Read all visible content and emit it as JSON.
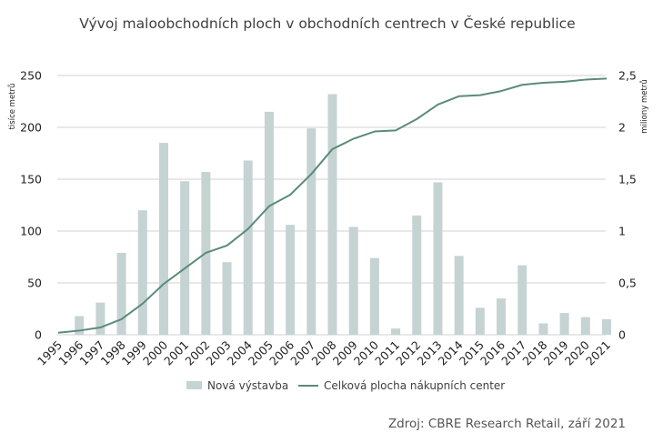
{
  "chart_data": {
    "type": "bar",
    "title": "Vývoj maloobchodních ploch v obchodních centrech v České republice",
    "categories": [
      "1995",
      "1996",
      "1997",
      "1998",
      "1999",
      "2000",
      "2001",
      "2002",
      "2003",
      "2004",
      "2005",
      "2006",
      "2007",
      "2008",
      "2009",
      "2010",
      "2011",
      "2012",
      "2013",
      "2014",
      "2015",
      "2016",
      "2017",
      "2018",
      "2019",
      "2020",
      "2021"
    ],
    "series": [
      {
        "name": "Nová výstavba",
        "kind": "bar",
        "axis": "left",
        "color": "#c5d3d3",
        "values": [
          0,
          18,
          31,
          79,
          120,
          185,
          148,
          157,
          70,
          168,
          215,
          106,
          199,
          232,
          104,
          74,
          6,
          115,
          147,
          76,
          26,
          35,
          67,
          11,
          21,
          17,
          15
        ]
      },
      {
        "name": "Celková plocha nákupních center",
        "kind": "line",
        "axis": "right",
        "color": "#5b8b7a",
        "values": [
          0.02,
          0.04,
          0.07,
          0.15,
          0.3,
          0.49,
          0.64,
          0.79,
          0.86,
          1.02,
          1.24,
          1.35,
          1.55,
          1.79,
          1.89,
          1.96,
          1.97,
          2.08,
          2.22,
          2.3,
          2.31,
          2.35,
          2.41,
          2.43,
          2.44,
          2.46,
          2.47
        ]
      }
    ],
    "y_left": {
      "label": "tisíce metrů",
      "ylim": [
        0,
        250
      ],
      "ticks": [
        "0",
        "50",
        "100",
        "150",
        "200",
        "250"
      ]
    },
    "y_right": {
      "label": "miliony metrů",
      "ylim": [
        0,
        2.5
      ],
      "ticks": [
        "0",
        "0,5",
        "1",
        "1,5",
        "2",
        "2,5"
      ]
    },
    "grid": true,
    "legend": {
      "placement": "bottom"
    },
    "source": "Zdroj: CBRE Research Retail, září 2021"
  }
}
